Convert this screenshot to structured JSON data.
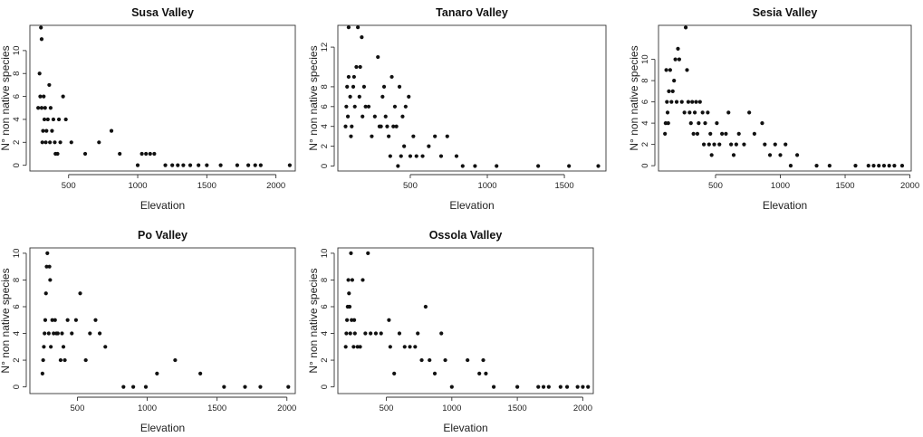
{
  "chart_data": [
    {
      "type": "scatter",
      "title": "Susa Valley",
      "xlabel": "Elevation",
      "ylabel": "N° non native species",
      "xlim": [
        220,
        2140
      ],
      "ylim": [
        -0.5,
        12.2
      ],
      "xticks": [
        500,
        1000,
        1500,
        2000
      ],
      "yticks": [
        0,
        2,
        4,
        6,
        8,
        10
      ],
      "points": [
        {
          "x": 280,
          "y": 5
        },
        {
          "x": 290,
          "y": 8
        },
        {
          "x": 295,
          "y": 6
        },
        {
          "x": 300,
          "y": 12
        },
        {
          "x": 305,
          "y": 11
        },
        {
          "x": 305,
          "y": 5
        },
        {
          "x": 310,
          "y": 2
        },
        {
          "x": 315,
          "y": 3
        },
        {
          "x": 320,
          "y": 6
        },
        {
          "x": 325,
          "y": 4
        },
        {
          "x": 330,
          "y": 5
        },
        {
          "x": 335,
          "y": 2
        },
        {
          "x": 340,
          "y": 3
        },
        {
          "x": 350,
          "y": 4
        },
        {
          "x": 360,
          "y": 7
        },
        {
          "x": 365,
          "y": 2
        },
        {
          "x": 370,
          "y": 5
        },
        {
          "x": 380,
          "y": 3
        },
        {
          "x": 390,
          "y": 4
        },
        {
          "x": 400,
          "y": 2
        },
        {
          "x": 405,
          "y": 1
        },
        {
          "x": 420,
          "y": 1
        },
        {
          "x": 430,
          "y": 4
        },
        {
          "x": 440,
          "y": 2
        },
        {
          "x": 460,
          "y": 6
        },
        {
          "x": 480,
          "y": 4
        },
        {
          "x": 520,
          "y": 2
        },
        {
          "x": 620,
          "y": 1
        },
        {
          "x": 720,
          "y": 2
        },
        {
          "x": 810,
          "y": 3
        },
        {
          "x": 870,
          "y": 1
        },
        {
          "x": 1000,
          "y": 0
        },
        {
          "x": 1030,
          "y": 1
        },
        {
          "x": 1060,
          "y": 1
        },
        {
          "x": 1090,
          "y": 1
        },
        {
          "x": 1120,
          "y": 1
        },
        {
          "x": 1200,
          "y": 0
        },
        {
          "x": 1250,
          "y": 0
        },
        {
          "x": 1290,
          "y": 0
        },
        {
          "x": 1330,
          "y": 0
        },
        {
          "x": 1380,
          "y": 0
        },
        {
          "x": 1440,
          "y": 0
        },
        {
          "x": 1500,
          "y": 0
        },
        {
          "x": 1600,
          "y": 0
        },
        {
          "x": 1720,
          "y": 0
        },
        {
          "x": 1800,
          "y": 0
        },
        {
          "x": 1850,
          "y": 0
        },
        {
          "x": 1890,
          "y": 0
        },
        {
          "x": 2100,
          "y": 0
        }
      ]
    },
    {
      "type": "scatter",
      "title": "Tanaro Valley",
      "xlabel": "Elevation",
      "ylabel": "N° non native species",
      "xlim": [
        30,
        1770
      ],
      "ylim": [
        -0.5,
        14.2
      ],
      "xticks": [
        500,
        1000,
        1500
      ],
      "yticks": [
        0,
        2,
        4,
        6,
        8,
        12
      ],
      "points": [
        {
          "x": 80,
          "y": 4
        },
        {
          "x": 85,
          "y": 6
        },
        {
          "x": 90,
          "y": 8
        },
        {
          "x": 95,
          "y": 5
        },
        {
          "x": 100,
          "y": 9
        },
        {
          "x": 100,
          "y": 14
        },
        {
          "x": 110,
          "y": 7
        },
        {
          "x": 115,
          "y": 3
        },
        {
          "x": 120,
          "y": 4
        },
        {
          "x": 130,
          "y": 8
        },
        {
          "x": 135,
          "y": 9
        },
        {
          "x": 140,
          "y": 6
        },
        {
          "x": 150,
          "y": 10
        },
        {
          "x": 160,
          "y": 14
        },
        {
          "x": 170,
          "y": 7
        },
        {
          "x": 175,
          "y": 10
        },
        {
          "x": 185,
          "y": 13
        },
        {
          "x": 190,
          "y": 5
        },
        {
          "x": 200,
          "y": 8
        },
        {
          "x": 210,
          "y": 6
        },
        {
          "x": 230,
          "y": 6
        },
        {
          "x": 250,
          "y": 3
        },
        {
          "x": 270,
          "y": 5
        },
        {
          "x": 290,
          "y": 11
        },
        {
          "x": 300,
          "y": 4
        },
        {
          "x": 310,
          "y": 4
        },
        {
          "x": 320,
          "y": 7
        },
        {
          "x": 330,
          "y": 8
        },
        {
          "x": 340,
          "y": 5
        },
        {
          "x": 350,
          "y": 4
        },
        {
          "x": 360,
          "y": 3
        },
        {
          "x": 370,
          "y": 1
        },
        {
          "x": 380,
          "y": 9
        },
        {
          "x": 390,
          "y": 4
        },
        {
          "x": 400,
          "y": 6
        },
        {
          "x": 410,
          "y": 4
        },
        {
          "x": 420,
          "y": 0
        },
        {
          "x": 430,
          "y": 8
        },
        {
          "x": 440,
          "y": 1
        },
        {
          "x": 450,
          "y": 5
        },
        {
          "x": 460,
          "y": 2
        },
        {
          "x": 470,
          "y": 6
        },
        {
          "x": 490,
          "y": 7
        },
        {
          "x": 500,
          "y": 1
        },
        {
          "x": 520,
          "y": 3
        },
        {
          "x": 540,
          "y": 1
        },
        {
          "x": 580,
          "y": 1
        },
        {
          "x": 620,
          "y": 2
        },
        {
          "x": 660,
          "y": 3
        },
        {
          "x": 700,
          "y": 1
        },
        {
          "x": 740,
          "y": 3
        },
        {
          "x": 800,
          "y": 1
        },
        {
          "x": 840,
          "y": 0
        },
        {
          "x": 920,
          "y": 0
        },
        {
          "x": 1060,
          "y": 0
        },
        {
          "x": 1330,
          "y": 0
        },
        {
          "x": 1530,
          "y": 0
        },
        {
          "x": 1720,
          "y": 0
        }
      ]
    },
    {
      "type": "scatter",
      "title": "Sesia Valley",
      "xlabel": "Elevation",
      "ylabel": "N° non native species",
      "xlim": [
        60,
        2010
      ],
      "ylim": [
        -0.5,
        13.2
      ],
      "xticks": [
        500,
        1000,
        1500,
        2000
      ],
      "yticks": [
        0,
        2,
        4,
        6,
        8,
        10
      ],
      "points": [
        {
          "x": 110,
          "y": 3
        },
        {
          "x": 115,
          "y": 4
        },
        {
          "x": 120,
          "y": 9
        },
        {
          "x": 125,
          "y": 6
        },
        {
          "x": 130,
          "y": 5
        },
        {
          "x": 135,
          "y": 4
        },
        {
          "x": 140,
          "y": 7
        },
        {
          "x": 150,
          "y": 9
        },
        {
          "x": 160,
          "y": 6
        },
        {
          "x": 170,
          "y": 7
        },
        {
          "x": 180,
          "y": 8
        },
        {
          "x": 190,
          "y": 10
        },
        {
          "x": 200,
          "y": 6
        },
        {
          "x": 210,
          "y": 11
        },
        {
          "x": 220,
          "y": 10
        },
        {
          "x": 240,
          "y": 6
        },
        {
          "x": 260,
          "y": 5
        },
        {
          "x": 270,
          "y": 13
        },
        {
          "x": 280,
          "y": 9
        },
        {
          "x": 290,
          "y": 6
        },
        {
          "x": 300,
          "y": 5
        },
        {
          "x": 310,
          "y": 4
        },
        {
          "x": 320,
          "y": 6
        },
        {
          "x": 330,
          "y": 3
        },
        {
          "x": 340,
          "y": 5
        },
        {
          "x": 350,
          "y": 6
        },
        {
          "x": 360,
          "y": 3
        },
        {
          "x": 370,
          "y": 4
        },
        {
          "x": 380,
          "y": 6
        },
        {
          "x": 400,
          "y": 5
        },
        {
          "x": 410,
          "y": 2
        },
        {
          "x": 420,
          "y": 4
        },
        {
          "x": 440,
          "y": 5
        },
        {
          "x": 450,
          "y": 2
        },
        {
          "x": 460,
          "y": 3
        },
        {
          "x": 470,
          "y": 1
        },
        {
          "x": 490,
          "y": 2
        },
        {
          "x": 510,
          "y": 4
        },
        {
          "x": 530,
          "y": 2
        },
        {
          "x": 550,
          "y": 3
        },
        {
          "x": 580,
          "y": 3
        },
        {
          "x": 600,
          "y": 5
        },
        {
          "x": 620,
          "y": 2
        },
        {
          "x": 640,
          "y": 1
        },
        {
          "x": 660,
          "y": 2
        },
        {
          "x": 680,
          "y": 3
        },
        {
          "x": 720,
          "y": 2
        },
        {
          "x": 760,
          "y": 5
        },
        {
          "x": 800,
          "y": 3
        },
        {
          "x": 860,
          "y": 4
        },
        {
          "x": 880,
          "y": 2
        },
        {
          "x": 920,
          "y": 1
        },
        {
          "x": 960,
          "y": 2
        },
        {
          "x": 1000,
          "y": 1
        },
        {
          "x": 1040,
          "y": 2
        },
        {
          "x": 1080,
          "y": 0
        },
        {
          "x": 1130,
          "y": 1
        },
        {
          "x": 1280,
          "y": 0
        },
        {
          "x": 1380,
          "y": 0
        },
        {
          "x": 1580,
          "y": 0
        },
        {
          "x": 1680,
          "y": 0
        },
        {
          "x": 1720,
          "y": 0
        },
        {
          "x": 1760,
          "y": 0
        },
        {
          "x": 1800,
          "y": 0
        },
        {
          "x": 1840,
          "y": 0
        },
        {
          "x": 1880,
          "y": 0
        },
        {
          "x": 1940,
          "y": 0
        }
      ]
    },
    {
      "type": "scatter",
      "title": "Po Valley",
      "xlabel": "Elevation",
      "ylabel": "N° non native species",
      "xlim": [
        160,
        2060
      ],
      "ylim": [
        -0.5,
        10.4
      ],
      "xticks": [
        500,
        1000,
        1500,
        2000
      ],
      "yticks": [
        0,
        2,
        4,
        6,
        8,
        10
      ],
      "points": [
        {
          "x": 250,
          "y": 1
        },
        {
          "x": 255,
          "y": 2
        },
        {
          "x": 260,
          "y": 3
        },
        {
          "x": 265,
          "y": 4
        },
        {
          "x": 270,
          "y": 5
        },
        {
          "x": 275,
          "y": 7
        },
        {
          "x": 280,
          "y": 9
        },
        {
          "x": 285,
          "y": 10
        },
        {
          "x": 295,
          "y": 4
        },
        {
          "x": 300,
          "y": 9
        },
        {
          "x": 305,
          "y": 8
        },
        {
          "x": 310,
          "y": 3
        },
        {
          "x": 320,
          "y": 5
        },
        {
          "x": 330,
          "y": 4
        },
        {
          "x": 340,
          "y": 5
        },
        {
          "x": 350,
          "y": 4
        },
        {
          "x": 360,
          "y": 4
        },
        {
          "x": 380,
          "y": 2
        },
        {
          "x": 390,
          "y": 4
        },
        {
          "x": 400,
          "y": 3
        },
        {
          "x": 410,
          "y": 2
        },
        {
          "x": 430,
          "y": 5
        },
        {
          "x": 460,
          "y": 4
        },
        {
          "x": 490,
          "y": 5
        },
        {
          "x": 520,
          "y": 7
        },
        {
          "x": 560,
          "y": 2
        },
        {
          "x": 590,
          "y": 4
        },
        {
          "x": 630,
          "y": 5
        },
        {
          "x": 660,
          "y": 4
        },
        {
          "x": 700,
          "y": 3
        },
        {
          "x": 830,
          "y": 0
        },
        {
          "x": 900,
          "y": 0
        },
        {
          "x": 990,
          "y": 0
        },
        {
          "x": 1070,
          "y": 1
        },
        {
          "x": 1200,
          "y": 2
        },
        {
          "x": 1380,
          "y": 1
        },
        {
          "x": 1550,
          "y": 0
        },
        {
          "x": 1700,
          "y": 0
        },
        {
          "x": 1810,
          "y": 0
        },
        {
          "x": 2010,
          "y": 0
        }
      ]
    },
    {
      "type": "scatter",
      "title": "Ossola Valley",
      "xlabel": "Elevation",
      "ylabel": "N° non native species",
      "xlim": [
        130,
        2080
      ],
      "ylim": [
        -0.5,
        10.4
      ],
      "xticks": [
        500,
        1000,
        1500,
        2000
      ],
      "yticks": [
        0,
        2,
        4,
        6,
        8,
        10
      ],
      "points": [
        {
          "x": 190,
          "y": 3
        },
        {
          "x": 195,
          "y": 4
        },
        {
          "x": 200,
          "y": 5
        },
        {
          "x": 205,
          "y": 6
        },
        {
          "x": 210,
          "y": 8
        },
        {
          "x": 215,
          "y": 7
        },
        {
          "x": 220,
          "y": 6
        },
        {
          "x": 225,
          "y": 4
        },
        {
          "x": 230,
          "y": 10
        },
        {
          "x": 235,
          "y": 5
        },
        {
          "x": 240,
          "y": 8
        },
        {
          "x": 250,
          "y": 3
        },
        {
          "x": 255,
          "y": 5
        },
        {
          "x": 260,
          "y": 4
        },
        {
          "x": 280,
          "y": 3
        },
        {
          "x": 300,
          "y": 3
        },
        {
          "x": 320,
          "y": 8
        },
        {
          "x": 340,
          "y": 4
        },
        {
          "x": 360,
          "y": 10
        },
        {
          "x": 380,
          "y": 4
        },
        {
          "x": 420,
          "y": 4
        },
        {
          "x": 460,
          "y": 4
        },
        {
          "x": 520,
          "y": 5
        },
        {
          "x": 530,
          "y": 3
        },
        {
          "x": 560,
          "y": 1
        },
        {
          "x": 600,
          "y": 4
        },
        {
          "x": 640,
          "y": 3
        },
        {
          "x": 680,
          "y": 3
        },
        {
          "x": 720,
          "y": 3
        },
        {
          "x": 740,
          "y": 4
        },
        {
          "x": 770,
          "y": 2
        },
        {
          "x": 800,
          "y": 6
        },
        {
          "x": 830,
          "y": 2
        },
        {
          "x": 870,
          "y": 1
        },
        {
          "x": 920,
          "y": 4
        },
        {
          "x": 950,
          "y": 2
        },
        {
          "x": 1000,
          "y": 0
        },
        {
          "x": 1120,
          "y": 2
        },
        {
          "x": 1210,
          "y": 1
        },
        {
          "x": 1240,
          "y": 2
        },
        {
          "x": 1260,
          "y": 1
        },
        {
          "x": 1320,
          "y": 0
        },
        {
          "x": 1500,
          "y": 0
        },
        {
          "x": 1660,
          "y": 0
        },
        {
          "x": 1700,
          "y": 0
        },
        {
          "x": 1740,
          "y": 0
        },
        {
          "x": 1830,
          "y": 0
        },
        {
          "x": 1880,
          "y": 0
        },
        {
          "x": 1960,
          "y": 0
        },
        {
          "x": 2000,
          "y": 0
        },
        {
          "x": 2040,
          "y": 0
        }
      ]
    }
  ]
}
